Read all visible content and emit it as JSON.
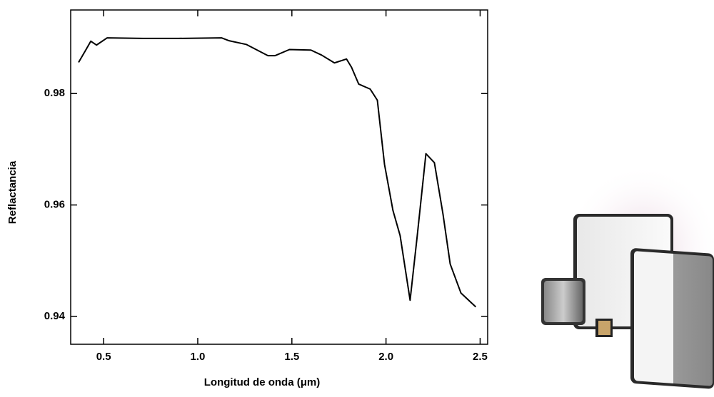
{
  "chart_data": {
    "type": "line",
    "xlabel": "Longitud de onda  (μm)",
    "ylabel": "Reflactancia",
    "x": [
      0.367,
      0.405,
      0.432,
      0.462,
      0.519,
      0.709,
      0.898,
      1.126,
      1.164,
      1.259,
      1.373,
      1.411,
      1.487,
      1.601,
      1.658,
      1.726,
      1.79,
      1.817,
      1.855,
      1.916,
      1.954,
      1.992,
      2.037,
      2.075,
      2.128,
      2.166,
      2.212,
      2.257,
      2.303,
      2.341,
      2.398,
      2.477
    ],
    "series": [
      {
        "color": "#000000",
        "values": [
          0.9856,
          0.9878,
          0.9894,
          0.9887,
          0.99,
          0.9899,
          0.9899,
          0.99,
          0.9895,
          0.9888,
          0.9868,
          0.9868,
          0.9879,
          0.9878,
          0.9869,
          0.9855,
          0.9862,
          0.9847,
          0.9817,
          0.9808,
          0.9788,
          0.9673,
          0.959,
          0.9545,
          0.9429,
          0.9545,
          0.9692,
          0.9676,
          0.9583,
          0.9494,
          0.9442,
          0.9417
        ]
      }
    ],
    "xlim": [
      0.325,
      2.54
    ],
    "ylim": [
      0.935,
      0.995
    ],
    "xticks": [
      0.5,
      {
        "value": 1.0,
        "label": "1.0"
      },
      1.5,
      {
        "value": 2.0,
        "label": "2.0"
      },
      2.5
    ],
    "yticks": [
      0.94,
      0.96,
      0.98
    ],
    "grid": false
  }
}
